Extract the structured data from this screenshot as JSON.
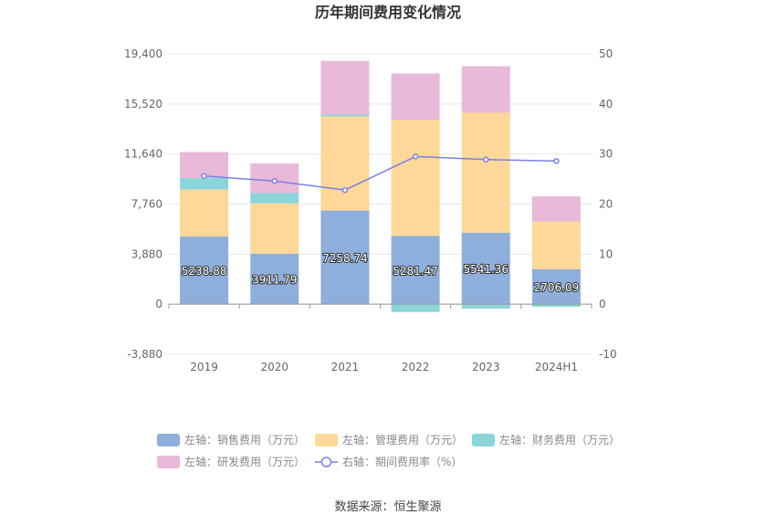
{
  "chart_data": {
    "type": "bar",
    "title": "历年期间费用变化情况",
    "categories": [
      "2019",
      "2020",
      "2021",
      "2022",
      "2023",
      "2024H1"
    ],
    "stacked": true,
    "left_axis": {
      "ylim": [
        -3880,
        19400
      ],
      "ticks": [
        -3880,
        0,
        3880,
        7760,
        11640,
        15520,
        19400
      ],
      "tick_labels": [
        "-3,880",
        "0",
        "3,880",
        "7,760",
        "11,640",
        "15,520",
        "19,400"
      ]
    },
    "right_axis": {
      "ylim": [
        -10,
        50
      ],
      "ticks": [
        -10,
        0,
        10,
        20,
        30,
        40,
        50
      ],
      "tick_labels": [
        "-10",
        "0",
        "10",
        "20",
        "30",
        "40",
        "50"
      ]
    },
    "series": [
      {
        "name": "左轴：销售费用（万元）",
        "type": "bar",
        "axis": "left",
        "color": "#8eaedc",
        "values": [
          5238.88,
          3911.79,
          7258.74,
          5281.47,
          5541.36,
          2706.09
        ],
        "labels": [
          "5238.88",
          "3911.79",
          "7258.74",
          "5281.47",
          "5541.36",
          "2706.09"
        ]
      },
      {
        "name": "左轴：管理费用（万元）",
        "type": "bar",
        "axis": "left",
        "color": "#fdd899",
        "values": [
          3650,
          3900,
          7300,
          9000,
          9300,
          3700
        ]
      },
      {
        "name": "左轴：财务费用（万元）",
        "type": "bar",
        "axis": "left",
        "color": "#8ad5d9",
        "values": [
          900,
          800,
          150,
          -600,
          -350,
          -200
        ]
      },
      {
        "name": "左轴：研发费用（万元）",
        "type": "bar",
        "axis": "left",
        "color": "#e8b9d9",
        "values": [
          2000,
          2300,
          4150,
          3600,
          3600,
          1950
        ]
      },
      {
        "name": "右轴：期间费用率（%）",
        "type": "line",
        "axis": "right",
        "color": "#7b7fe8",
        "values": [
          25.6,
          24.6,
          22.8,
          29.5,
          28.9,
          28.6
        ]
      }
    ],
    "legend_position": "bottom",
    "grid": true
  },
  "source_text": "数据来源：恒生聚源"
}
